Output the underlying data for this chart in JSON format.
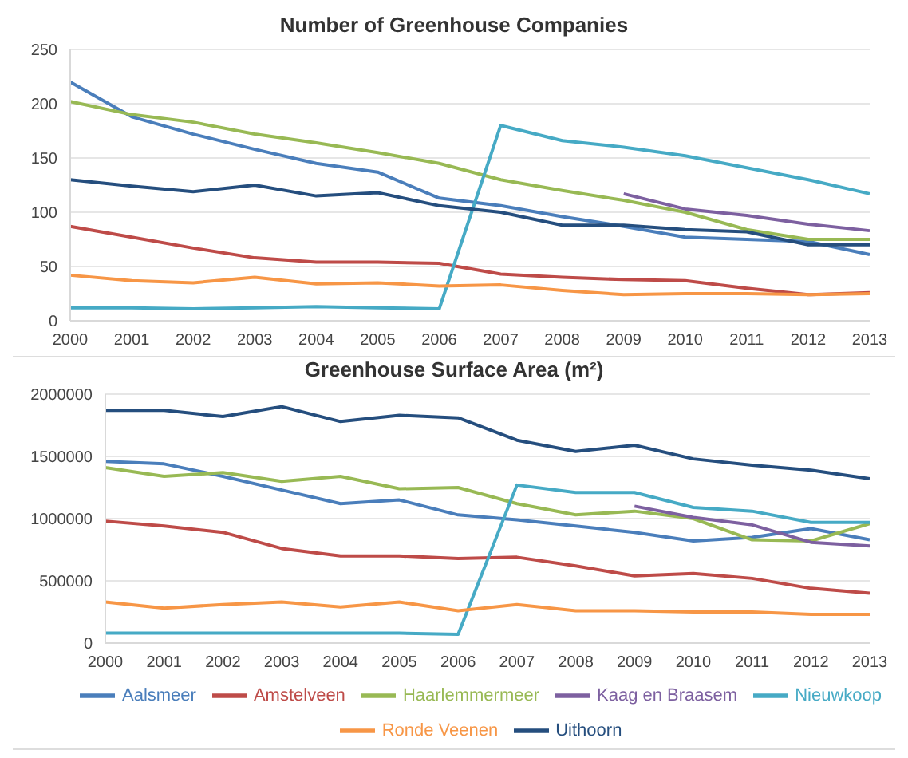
{
  "chart_data": [
    {
      "type": "line",
      "title": "Number of Greenhouse Companies",
      "categories": [
        "2000",
        "2001",
        "2002",
        "2003",
        "2004",
        "2005",
        "2006",
        "2007",
        "2008",
        "2009",
        "2010",
        "2011",
        "2012",
        "2013"
      ],
      "series": [
        {
          "color": "#4a7ebb",
          "values": [
            220,
            188,
            172,
            158,
            145,
            137,
            113,
            106,
            96,
            87,
            77,
            75,
            73,
            61
          ]
        },
        {
          "color": "#be4b48",
          "values": [
            87,
            77,
            67,
            58,
            54,
            54,
            53,
            43,
            40,
            38,
            37,
            30,
            24,
            26
          ]
        },
        {
          "color": "#98b954",
          "values": [
            202,
            190,
            183,
            172,
            164,
            155,
            145,
            130,
            120,
            111,
            100,
            84,
            75,
            75
          ]
        },
        {
          "color": "#7d60a0",
          "values": [
            null,
            null,
            null,
            null,
            null,
            null,
            null,
            null,
            null,
            117,
            103,
            97,
            89,
            83
          ]
        },
        {
          "color": "#46aac5",
          "values": [
            12,
            12,
            11,
            12,
            13,
            12,
            11,
            180,
            166,
            160,
            152,
            141,
            130,
            117
          ]
        },
        {
          "color": "#f79646",
          "values": [
            42,
            37,
            35,
            40,
            34,
            35,
            32,
            33,
            28,
            24,
            25,
            25,
            24,
            25
          ]
        },
        {
          "color": "#254e7e",
          "values": [
            130,
            124,
            119,
            125,
            115,
            118,
            106,
            100,
            88,
            88,
            84,
            82,
            70,
            70
          ]
        }
      ],
      "ylim": [
        0,
        250
      ],
      "yticks": [
        0,
        50,
        100,
        150,
        200,
        250
      ],
      "grid": "y"
    },
    {
      "type": "line",
      "title": "Greenhouse Surface Area (m²)",
      "categories": [
        "2000",
        "2001",
        "2002",
        "2003",
        "2004",
        "2005",
        "2006",
        "2007",
        "2008",
        "2009",
        "2010",
        "2011",
        "2012",
        "2013"
      ],
      "series": [
        {
          "name": "Aalsmeer",
          "color": "#4a7ebb",
          "values": [
            1460000,
            1440000,
            1340000,
            1230000,
            1120000,
            1150000,
            1030000,
            990000,
            940000,
            890000,
            820000,
            850000,
            920000,
            830000
          ]
        },
        {
          "name": "Amstelveen",
          "color": "#be4b48",
          "values": [
            980000,
            940000,
            890000,
            760000,
            700000,
            700000,
            680000,
            690000,
            620000,
            540000,
            560000,
            520000,
            440000,
            400000
          ]
        },
        {
          "name": "Haarlemmermeer",
          "color": "#98b954",
          "values": [
            1410000,
            1340000,
            1370000,
            1300000,
            1340000,
            1240000,
            1250000,
            1120000,
            1030000,
            1060000,
            1000000,
            830000,
            820000,
            960000
          ]
        },
        {
          "name": "Kaag en Braasem",
          "color": "#7d60a0",
          "values": [
            null,
            null,
            null,
            null,
            null,
            null,
            null,
            null,
            null,
            1100000,
            1010000,
            950000,
            810000,
            780000
          ]
        },
        {
          "name": "Nieuwkoop",
          "color": "#46aac5",
          "values": [
            80000,
            80000,
            80000,
            80000,
            80000,
            80000,
            70000,
            1270000,
            1210000,
            1210000,
            1090000,
            1060000,
            970000,
            970000
          ]
        },
        {
          "name": "Ronde Veenen",
          "color": "#f79646",
          "values": [
            330000,
            280000,
            310000,
            330000,
            290000,
            330000,
            260000,
            310000,
            260000,
            260000,
            250000,
            250000,
            230000,
            230000
          ]
        },
        {
          "name": "Uithoorn",
          "color": "#254e7e",
          "values": [
            1870000,
            1870000,
            1820000,
            1900000,
            1780000,
            1830000,
            1810000,
            1630000,
            1540000,
            1590000,
            1480000,
            1430000,
            1390000,
            1320000
          ]
        }
      ],
      "ylim": [
        0,
        2000000
      ],
      "yticks": [
        0,
        500000,
        1000000,
        1500000,
        2000000
      ],
      "grid": "y",
      "legend": "bottom"
    }
  ]
}
